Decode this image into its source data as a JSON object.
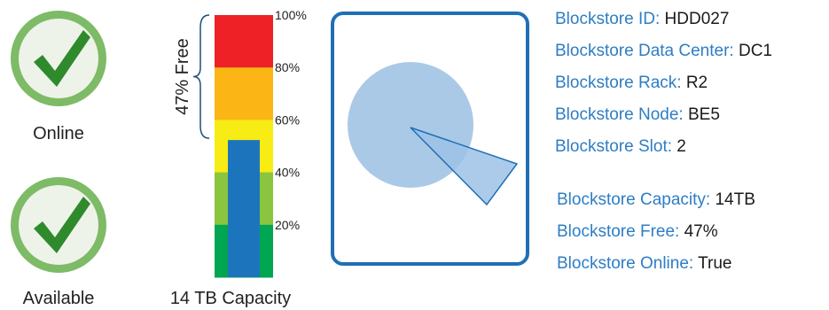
{
  "status": {
    "online_label": "Online",
    "available_label": "Available",
    "icon": "check-icon",
    "colors": {
      "ring": "#7dbb66",
      "inner": "#eef3ea",
      "check": "#2f8a2c"
    }
  },
  "capacity_gauge": {
    "free_percent": 47,
    "used_percent": 53,
    "free_label": "47% Free",
    "capacity_label": "14 TB Capacity",
    "ticks": [
      "100%",
      "80%",
      "60%",
      "40%",
      "20%"
    ],
    "band_colors": [
      "#ee2226",
      "#fbb616",
      "#f7ec13",
      "#8bc53f",
      "#00a651"
    ],
    "fill_color": "#1c75bc"
  },
  "drive_icon": {
    "name": "hard-drive-icon",
    "colors": {
      "border": "#1f6fb5",
      "platter": "#aac9e6",
      "arm": "#9dc2e6",
      "arm_stroke": "#1f6fb5"
    }
  },
  "details": [
    {
      "key": "Blockstore ID:",
      "value": "HDD027"
    },
    {
      "key": "Blockstore Data Center:",
      "value": "DC1"
    },
    {
      "key": "Blockstore Rack:",
      "value": "R2"
    },
    {
      "key": "Blockstore Node:",
      "value": "BE5"
    },
    {
      "key": "Blockstore Slot:",
      "value": "2"
    }
  ],
  "stats": [
    {
      "key": "Blockstore Capacity:",
      "value": "14TB"
    },
    {
      "key": "Blockstore Free:",
      "value": "47%"
    },
    {
      "key": "Blockstore Online:",
      "value": "True"
    }
  ]
}
